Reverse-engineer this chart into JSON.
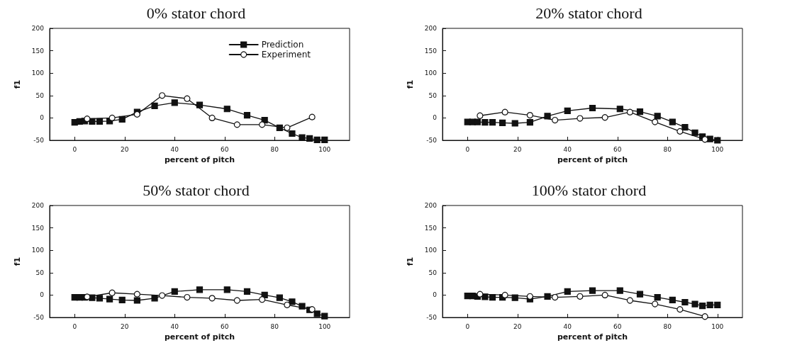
{
  "chart_data": [
    {
      "type": "line",
      "title": "0% stator chord",
      "xlabel": "percent of pitch",
      "ylabel": "f1",
      "xlim": [
        -10,
        110
      ],
      "xticks": [
        0,
        20,
        40,
        60,
        80,
        100
      ],
      "ylim": [
        -50,
        200
      ],
      "yticks": [
        -50,
        0,
        50,
        100,
        150,
        200
      ],
      "grid": false,
      "legend": "top right",
      "line_style": "solid",
      "series": [
        {
          "name": "Prediction",
          "color": "#111111",
          "marker": "square",
          "x": [
            0,
            2,
            4,
            7,
            10,
            14,
            19,
            25,
            32,
            40,
            50,
            61,
            69,
            76,
            82,
            87,
            91,
            94,
            97,
            100
          ],
          "values": [
            -10,
            -8,
            -7,
            -8,
            -8,
            -7,
            -3,
            13,
            27,
            34,
            29,
            20,
            6,
            -5,
            -22,
            -35,
            -44,
            -46,
            -49,
            -49
          ]
        },
        {
          "name": "Experiment",
          "color": "#111111",
          "marker": "circle",
          "x": [
            5,
            15,
            25,
            35,
            45,
            55,
            65,
            75,
            85,
            95
          ],
          "values": [
            -2,
            0,
            8,
            50,
            43,
            0,
            -15,
            -15,
            -22,
            2
          ]
        }
      ]
    },
    {
      "type": "line",
      "title": "20% stator chord",
      "xlabel": "percent of pitch",
      "ylabel": "f1",
      "xlim": [
        -10,
        110
      ],
      "xticks": [
        0,
        20,
        40,
        60,
        80,
        100
      ],
      "ylim": [
        -50,
        200
      ],
      "yticks": [
        -50,
        0,
        50,
        100,
        150,
        200
      ],
      "grid": false,
      "line_style": "solid",
      "series": [
        {
          "color": "#111111",
          "marker": "square",
          "x": [
            0,
            2,
            4,
            7,
            10,
            14,
            19,
            25,
            32,
            40,
            50,
            61,
            69,
            76,
            82,
            87,
            91,
            94,
            97,
            100
          ],
          "values": [
            -9,
            -9,
            -9,
            -10,
            -10,
            -11,
            -12,
            -10,
            4,
            16,
            22,
            20,
            14,
            4,
            -9,
            -21,
            -33,
            -42,
            -47,
            -50
          ]
        },
        {
          "color": "#111111",
          "marker": "circle",
          "x": [
            5,
            15,
            25,
            35,
            45,
            55,
            65,
            75,
            85,
            95
          ],
          "values": [
            5,
            13,
            6,
            -5,
            -1,
            1,
            13,
            -9,
            -30,
            -48
          ]
        }
      ]
    },
    {
      "type": "line",
      "title": "50% stator chord",
      "xlabel": "percent of pitch",
      "ylabel": "f1",
      "xlim": [
        -10,
        110
      ],
      "xticks": [
        0,
        20,
        40,
        60,
        80,
        100
      ],
      "ylim": [
        -50,
        200
      ],
      "yticks": [
        -50,
        0,
        50,
        100,
        150,
        200
      ],
      "grid": false,
      "line_style": "solid",
      "series": [
        {
          "color": "#111111",
          "marker": "square",
          "x": [
            0,
            2,
            4,
            7,
            10,
            14,
            19,
            25,
            32,
            40,
            50,
            61,
            69,
            76,
            82,
            87,
            91,
            94,
            97,
            100
          ],
          "values": [
            -5,
            -5,
            -5,
            -6,
            -7,
            -9,
            -11,
            -12,
            -7,
            8,
            12,
            12,
            8,
            0,
            -6,
            -15,
            -25,
            -33,
            -42,
            -47
          ]
        },
        {
          "color": "#111111",
          "marker": "circle",
          "x": [
            5,
            15,
            25,
            35,
            45,
            55,
            65,
            75,
            85,
            95
          ],
          "values": [
            -4,
            5,
            2,
            -1,
            -5,
            -7,
            -12,
            -10,
            -22,
            -32
          ]
        }
      ]
    },
    {
      "type": "line",
      "title": "100% stator chord",
      "xlabel": "percent of pitch",
      "ylabel": "f1",
      "xlim": [
        -10,
        110
      ],
      "xticks": [
        0,
        20,
        40,
        60,
        80,
        100
      ],
      "ylim": [
        -50,
        200
      ],
      "yticks": [
        -50,
        0,
        50,
        100,
        150,
        200
      ],
      "grid": false,
      "line_style": "solid",
      "series": [
        {
          "color": "#111111",
          "marker": "square",
          "x": [
            0,
            2,
            4,
            7,
            10,
            14,
            19,
            25,
            32,
            40,
            50,
            61,
            69,
            76,
            82,
            87,
            91,
            94,
            97,
            100
          ],
          "values": [
            -2,
            -2,
            -3,
            -4,
            -5,
            -5,
            -6,
            -9,
            -3,
            8,
            10,
            10,
            2,
            -5,
            -11,
            -16,
            -20,
            -24,
            -22,
            -22
          ]
        },
        {
          "color": "#111111",
          "marker": "circle",
          "x": [
            5,
            15,
            25,
            35,
            45,
            55,
            65,
            75,
            85,
            95
          ],
          "values": [
            2,
            0,
            -3,
            -5,
            -3,
            0,
            -12,
            -20,
            -32,
            -48
          ]
        }
      ]
    }
  ]
}
